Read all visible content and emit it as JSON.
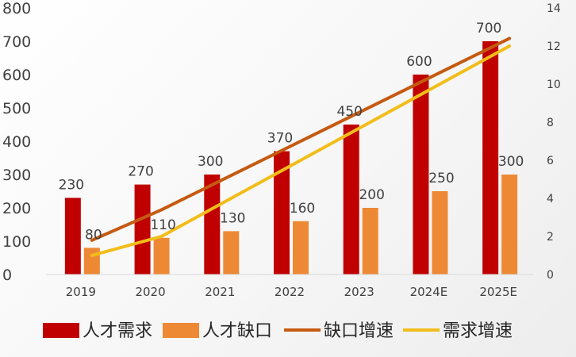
{
  "chart_data": {
    "type": "bar",
    "categories": [
      "2019",
      "2020",
      "2021",
      "2022",
      "2023",
      "2024E",
      "2025E"
    ],
    "series": [
      {
        "name": "人才需求",
        "kind": "bar",
        "axis": "left",
        "color": "#c00000",
        "values": [
          230,
          270,
          300,
          370,
          450,
          600,
          700
        ]
      },
      {
        "name": "人才缺口",
        "kind": "bar",
        "axis": "left",
        "color": "#ed8935",
        "values": [
          80,
          110,
          130,
          160,
          200,
          250,
          300
        ]
      },
      {
        "name": "缺口增速",
        "kind": "line",
        "axis": "right",
        "color": "#c55a11",
        "values": [
          1.8,
          3.4,
          5.2,
          7.0,
          8.8,
          10.6,
          12.4
        ]
      },
      {
        "name": "需求增速",
        "kind": "line",
        "axis": "right",
        "color": "#f2bd19",
        "values": [
          1.0,
          2.0,
          4.0,
          6.0,
          8.0,
          10.0,
          12.0
        ]
      }
    ],
    "y_left": {
      "min": 0,
      "max": 800,
      "ticks": [
        "0",
        "100",
        "200",
        "300",
        "400",
        "500",
        "600",
        "700",
        "800"
      ]
    },
    "y_right": {
      "min": 0,
      "max": 14,
      "ticks": [
        "0",
        "2",
        "4",
        "6",
        "8",
        "10",
        "12",
        "14"
      ]
    },
    "bar_data_labels": {
      "人才需求": [
        "230",
        "270",
        "300",
        "370",
        "450",
        "600",
        "700"
      ],
      "人才缺口": [
        "80",
        "110",
        "130",
        "160",
        "200",
        "250",
        "300"
      ]
    },
    "legend_position": "bottom",
    "grid": false,
    "title": "",
    "xlabel": "",
    "ylabel": ""
  }
}
